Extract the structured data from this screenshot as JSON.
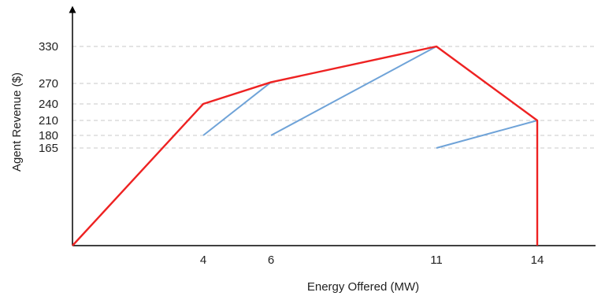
{
  "chart_data": {
    "type": "line",
    "title": "",
    "xlabel": "Energy Offered (MW)",
    "ylabel": "Agent Revenue ($)",
    "x_ticks": [
      4,
      6,
      11,
      14
    ],
    "y_ticks": [
      165,
      180,
      210,
      240,
      270,
      330
    ],
    "xlim": [
      0,
      16
    ],
    "ylim": [
      0,
      350
    ],
    "grid": "horizontal-dashed at y ticks",
    "series": [
      {
        "color": "#ee2222",
        "points": [
          [
            0,
            0
          ],
          [
            4,
            240
          ],
          [
            6,
            272
          ],
          [
            11,
            330
          ],
          [
            14,
            210
          ],
          [
            14,
            0
          ]
        ]
      },
      {
        "color": "#6fa3d8",
        "segments": [
          [
            [
              4,
              180
            ],
            [
              6,
              272
            ]
          ],
          [
            [
              6,
              180
            ],
            [
              11,
              330
            ]
          ],
          [
            [
              11,
              165
            ],
            [
              14,
              210
            ]
          ]
        ]
      }
    ]
  }
}
